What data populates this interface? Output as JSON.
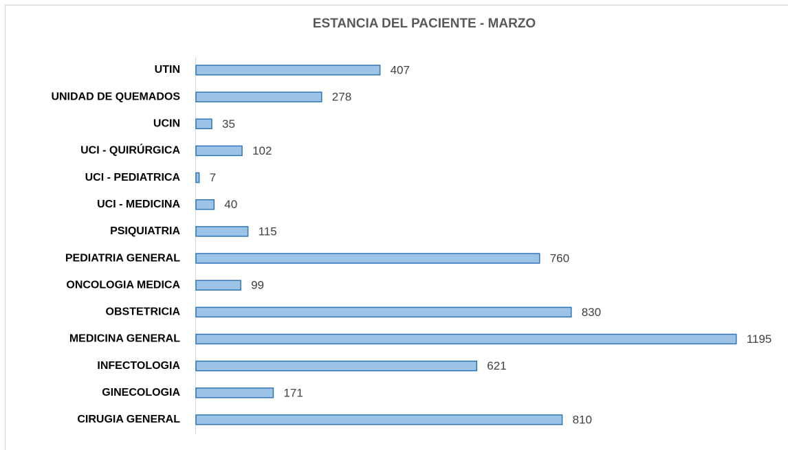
{
  "chart_data": {
    "type": "bar",
    "orientation": "horizontal",
    "title": "ESTANCIA DEL PACIENTE - MARZO",
    "categories": [
      "UTIN",
      "UNIDAD DE QUEMADOS",
      "UCIN",
      "UCI - QUIRÚRGICA",
      "UCI - PEDIATRICA",
      "UCI - MEDICINA",
      "PSIQUIATRIA",
      "PEDIATRIA GENERAL",
      "ONCOLOGIA MEDICA",
      "OBSTETRICIA",
      "MEDICINA GENERAL",
      "INFECTOLOGIA",
      "GINECOLOGIA",
      "CIRUGIA GENERAL"
    ],
    "values": [
      407,
      278,
      35,
      102,
      7,
      40,
      115,
      760,
      99,
      830,
      1195,
      621,
      171,
      810
    ],
    "color": "#9dc3e6",
    "edge_color": "#2e75b6",
    "xlim": [
      0,
      1200
    ]
  }
}
